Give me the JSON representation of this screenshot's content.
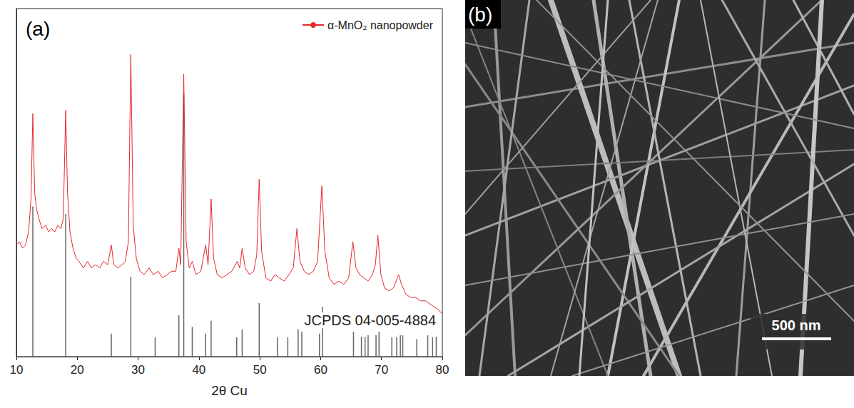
{
  "chart_data": {
    "type": "line",
    "panel_label": "(a)",
    "x_label": "2θ Cu",
    "xlim": [
      10,
      80
    ],
    "xticks": [
      10,
      20,
      30,
      40,
      50,
      60,
      70,
      80
    ],
    "ylim": [
      0,
      106
    ],
    "tick_labels": "x",
    "grid": false,
    "legend": "upper right",
    "series": [
      {
        "name": "α-MnO₂ nanopowder",
        "type": "line",
        "color": "#e8262b",
        "x": [
          10,
          10.5,
          11,
          11.5,
          12,
          12.4,
          12.7,
          13.0,
          13.3,
          13.7,
          14.2,
          14.8,
          15.3,
          15.8,
          16.3,
          16.8,
          17.3,
          17.7,
          18.1,
          18.4,
          18.8,
          19.3,
          19.8,
          20.3,
          21,
          21.7,
          22.3,
          23,
          23.7,
          24.3,
          25,
          25.6,
          26,
          26.7,
          27.3,
          27.9,
          28.4,
          28.8,
          29.2,
          29.7,
          30.3,
          31,
          31.8,
          32.5,
          33.3,
          34,
          34.8,
          35.5,
          36.2,
          36.7,
          37.0,
          37.5,
          37.9,
          38.4,
          38.9,
          39.5,
          40.3,
          41.1,
          41.5,
          42.0,
          42.4,
          43,
          43.8,
          44.6,
          45.4,
          46.3,
          46.7,
          47.1,
          47.6,
          48.3,
          49.0,
          49.5,
          49.9,
          50.3,
          51,
          51.8,
          52.5,
          53.2,
          54,
          54.8,
          55.5,
          56.1,
          56.6,
          57.3,
          58,
          58.8,
          59.5,
          60.2,
          60.7,
          61.4,
          62.2,
          63,
          63.8,
          64.6,
          65.3,
          65.8,
          66.4,
          67.1,
          67.8,
          68.5,
          69.0,
          69.4,
          69.9,
          70.5,
          71.2,
          72,
          72.8,
          73.3,
          74,
          74.8,
          75.6,
          76.4,
          77.2,
          78,
          78.8,
          79.5,
          80
        ],
        "values": [
          34,
          35,
          33,
          34,
          38,
          48,
          74,
          50,
          45,
          42,
          39,
          40,
          38,
          39,
          38,
          40,
          39,
          42,
          75,
          50,
          38,
          33,
          30,
          29,
          27,
          29,
          27,
          28,
          27,
          29,
          28,
          34,
          28,
          27,
          28,
          29,
          35,
          92,
          40,
          30,
          26,
          25,
          27,
          25,
          26,
          24,
          25,
          26,
          26,
          33,
          28,
          86,
          35,
          27,
          29,
          25,
          26,
          34,
          28,
          48,
          30,
          25,
          24,
          25,
          26,
          29,
          27,
          33,
          27,
          25,
          26,
          31,
          54,
          32,
          24,
          23,
          25,
          24,
          23,
          25,
          27,
          39,
          29,
          26,
          25,
          26,
          29,
          52,
          32,
          24,
          22,
          23,
          22,
          24,
          35,
          27,
          25,
          24,
          23,
          25,
          28,
          37,
          25,
          21,
          20,
          21,
          25,
          22,
          19,
          18,
          18,
          17,
          17,
          16,
          15,
          14,
          13
        ]
      },
      {
        "name": "JCPDS 04-005-4884",
        "type": "bar",
        "color": "#666666",
        "x": [
          12.7,
          18.1,
          25.6,
          28.8,
          32.8,
          36.7,
          37.5,
          38.9,
          41.1,
          42.0,
          46.2,
          47.1,
          49.9,
          52.9,
          54.6,
          56.3,
          56.9,
          59.8,
          60.3,
          65.4,
          66.7,
          67.3,
          67.8,
          69.1,
          69.6,
          71.7,
          72.5,
          73.1,
          73.5,
          75.8,
          77.6,
          78.4,
          79.0
        ],
        "values": [
          45.7,
          43.5,
          7,
          24.3,
          5.9,
          12.6,
          80,
          9.1,
          7,
          10.9,
          5.9,
          8.3,
          16.3,
          5.9,
          5.9,
          8.3,
          7.6,
          7,
          15.2,
          7.6,
          6.1,
          6.1,
          6.5,
          6.5,
          7.6,
          5.9,
          5.9,
          6.5,
          6.5,
          5.4,
          6.5,
          5.9,
          6.1
        ]
      }
    ]
  },
  "image_panel": {
    "panel_label": "(b)",
    "scale_bar": "500 nm"
  }
}
